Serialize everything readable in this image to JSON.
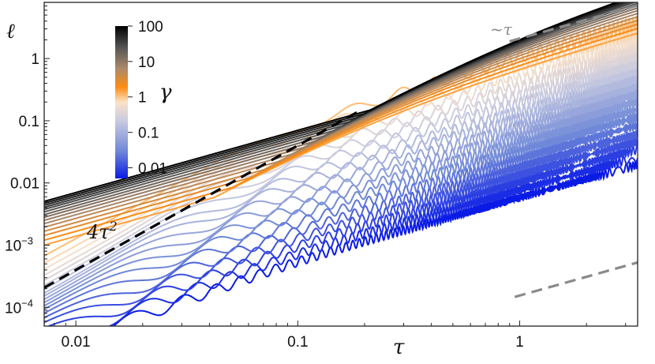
{
  "chart_data": {
    "type": "line",
    "title": "",
    "xlabel": "τ",
    "ylabel": "ℓ",
    "xscale": "log",
    "yscale": "log",
    "xlim": [
      0.0072,
      3.4
    ],
    "ylim": [
      5e-05,
      8
    ],
    "grid": false,
    "x_ticks": [
      {
        "value": 0.01,
        "label": "0.01"
      },
      {
        "value": 0.1,
        "label": "0.1"
      },
      {
        "value": 1,
        "label": "1"
      }
    ],
    "y_ticks": [
      {
        "value": 0.0001,
        "label": "10",
        "exp": "-4"
      },
      {
        "value": 0.001,
        "label": "10",
        "exp": "-3"
      },
      {
        "value": 0.01,
        "label": "0.01",
        "exp": ""
      },
      {
        "value": 0.1,
        "label": "0.1",
        "exp": ""
      },
      {
        "value": 1,
        "label": "1",
        "exp": ""
      }
    ],
    "colorbar": {
      "label": "γ",
      "scale": "log",
      "ticks": [
        {
          "value": 100,
          "label": "100"
        },
        {
          "value": 10,
          "label": "10"
        },
        {
          "value": 1,
          "label": "1"
        },
        {
          "value": 0.1,
          "label": "0.1"
        },
        {
          "value": 0.01,
          "label": "0.01"
        }
      ],
      "range": [
        0.005,
        100
      ],
      "colors": [
        {
          "at": 0.0,
          "color": "#0a1be6"
        },
        {
          "at": 0.18,
          "color": "#6f88d8"
        },
        {
          "at": 0.38,
          "color": "#c9cbe0"
        },
        {
          "at": 0.5,
          "color": "#fbe2c8"
        },
        {
          "at": 0.6,
          "color": "#ff8c10"
        },
        {
          "at": 0.72,
          "color": "#ad8a6a"
        },
        {
          "at": 0.86,
          "color": "#555555"
        },
        {
          "at": 1.0,
          "color": "#000000"
        }
      ]
    },
    "series_model": {
      "description_of_curves": "ℓ(τ) for a family of γ values, log-spaced from 0.005 to 100; short-time asymptote 4τ², long-time linear growth with oscillations",
      "gammas": [
        0.005,
        0.0067,
        0.009,
        0.012,
        0.016,
        0.022,
        0.03,
        0.04,
        0.054,
        0.073,
        0.1,
        0.13,
        0.18,
        0.24,
        0.33,
        0.44,
        0.6,
        0.8,
        1.1,
        1.5,
        2,
        2.7,
        3.6,
        4.9,
        6.6,
        8.9,
        12,
        16,
        22,
        30,
        40,
        54,
        73,
        100
      ]
    },
    "annotations": [
      {
        "text": "4τ",
        "sup": "2",
        "meaning": "short-time asymptote ℓ = 4τ²"
      },
      {
        "text": "~τ",
        "meaning": "long-time asymptote ℓ ∝ τ"
      }
    ],
    "reference_lines": [
      {
        "name": "4τ²",
        "style": "dashed",
        "color": "#000000",
        "from_x": 0.0072,
        "to_x": 0.19,
        "slope": 2,
        "coeff": 4
      },
      {
        "name": "~τ upper",
        "style": "dashed",
        "color": "#8a8a8a",
        "from_x": 0.9,
        "to_x": 3.4,
        "slope": 1,
        "coeff": 2.1
      },
      {
        "name": "~τ lower",
        "style": "dashed",
        "color": "#8a8a8a",
        "from_x": 0.95,
        "to_x": 3.4,
        "slope": 1,
        "coeff": 0.000155
      }
    ]
  }
}
